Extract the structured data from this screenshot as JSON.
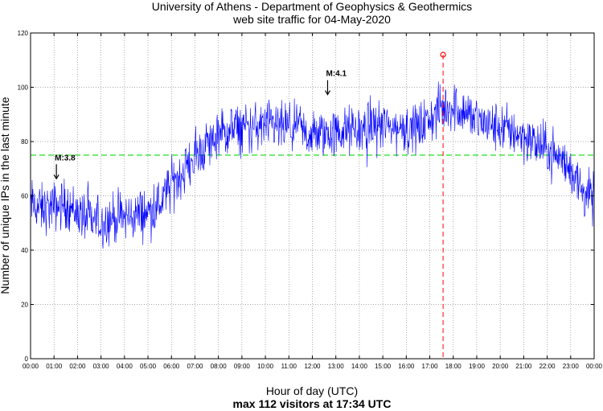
{
  "chart_data": {
    "type": "line",
    "title": "University of Athens - Department of Geophysics & Geothermics",
    "subtitle": "web site traffic for 04-May-2020",
    "xlabel": "Hour of day (UTC)",
    "ylabel": "Number of unique IPs in the last minute",
    "footer": "max 112 visitors at 17:34 UTC",
    "xlim": [
      0,
      24
    ],
    "ylim": [
      0,
      120
    ],
    "x_ticks": [
      "00:00",
      "01:00",
      "02:00",
      "03:00",
      "04:00",
      "05:00",
      "06:00",
      "07:00",
      "08:00",
      "09:00",
      "10:00",
      "11:00",
      "12:00",
      "13:00",
      "14:00",
      "15:00",
      "16:00",
      "17:00",
      "18:00",
      "19:00",
      "20:00",
      "21:00",
      "22:00",
      "23:00",
      "00:00"
    ],
    "y_ticks": [
      "0",
      "20",
      "40",
      "60",
      "80",
      "100",
      "120"
    ],
    "grid": true,
    "series": [
      {
        "color": "#0000ff",
        "x": [
          0,
          0.5,
          1,
          1.5,
          2,
          2.5,
          3,
          3.5,
          4,
          4.5,
          5,
          5.5,
          6,
          6.5,
          7,
          7.5,
          8,
          8.5,
          9,
          9.5,
          10,
          10.5,
          11,
          11.5,
          12,
          12.5,
          13,
          13.5,
          14,
          14.5,
          15,
          15.5,
          16,
          16.5,
          17,
          17.5,
          18,
          18.5,
          19,
          19.5,
          20,
          20.5,
          21,
          21.5,
          22,
          22.5,
          23,
          23.5,
          24
        ],
        "y": [
          57,
          55,
          56,
          57,
          54,
          51,
          50,
          52,
          52,
          53,
          54,
          57,
          64,
          69,
          74,
          79,
          82,
          84,
          85,
          85,
          86,
          85,
          85,
          84,
          82,
          83,
          83,
          84,
          84,
          86,
          86,
          85,
          85,
          85,
          88,
          92,
          93,
          91,
          88,
          86,
          85,
          84,
          82,
          79,
          77,
          74,
          70,
          62,
          58
        ]
      }
    ],
    "mean_line": {
      "value": 75,
      "color": "#22dd22"
    },
    "max_marker": {
      "x": 17.567,
      "y": 112,
      "color": "#ff0000"
    },
    "annotations": [
      {
        "text": "M:3.8",
        "x": 1.1,
        "y": 66
      },
      {
        "text": "M:4.1",
        "x": 12.65,
        "y": 97
      }
    ]
  }
}
